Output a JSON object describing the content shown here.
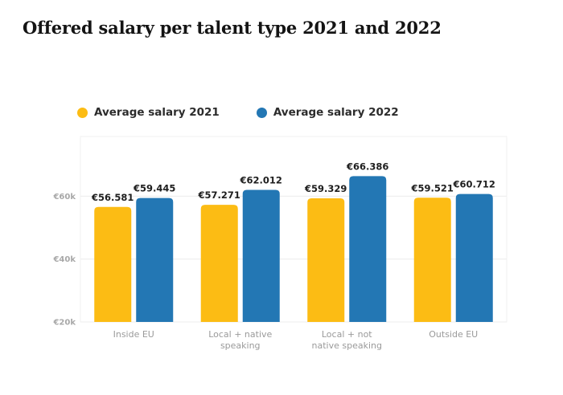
{
  "colors": {
    "s2021": "#fcbc14",
    "s2022": "#2377b4"
  },
  "chart_data": {
    "type": "bar",
    "title": "Offered salary per talent type 2021 and 2022",
    "categories": [
      [
        "Inside EU"
      ],
      [
        "Local + native",
        "speaking"
      ],
      [
        "Local + not",
        "native speaking"
      ],
      [
        "Outside EU"
      ]
    ],
    "series": [
      {
        "name": "Average salary 2021",
        "values": [
          56581,
          57271,
          59329,
          59521
        ],
        "labels": [
          "€56.581",
          "€57.271",
          "€59.329",
          "€59.521"
        ]
      },
      {
        "name": "Average salary 2022",
        "values": [
          59445,
          62012,
          66386,
          60712
        ],
        "labels": [
          "€59.445",
          "€62.012",
          "€66.386",
          "€60.712"
        ]
      }
    ],
    "yticks": [
      20000,
      40000,
      60000
    ],
    "ytick_labels": [
      "€20k",
      "€40k",
      "€60k"
    ],
    "ylim": [
      20000,
      79000
    ],
    "legend_position": "top-left",
    "grid": true
  }
}
